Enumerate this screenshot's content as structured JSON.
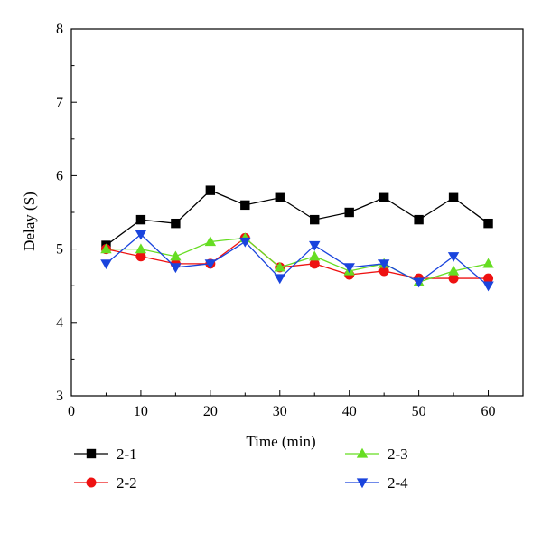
{
  "chart_data": {
    "type": "line",
    "title": "",
    "xlabel": "Time (min)",
    "ylabel": "Delay (S)",
    "xlim": [
      0,
      65
    ],
    "ylim": [
      3,
      8
    ],
    "xticks": [
      0,
      10,
      20,
      30,
      40,
      50,
      60
    ],
    "yticks": [
      3,
      4,
      5,
      6,
      7,
      8
    ],
    "x": [
      5,
      10,
      15,
      20,
      25,
      30,
      35,
      40,
      45,
      50,
      55,
      60
    ],
    "grid": false,
    "legend_position": "bottom",
    "series": [
      {
        "name": "2-1",
        "color": "#000000",
        "marker": "square",
        "values": [
          5.05,
          5.4,
          5.35,
          5.8,
          5.6,
          5.7,
          5.4,
          5.5,
          5.7,
          5.4,
          5.7,
          5.35
        ]
      },
      {
        "name": "2-2",
        "color": "#ee1111",
        "marker": "circle",
        "values": [
          5.0,
          4.9,
          4.8,
          4.8,
          5.15,
          4.75,
          4.8,
          4.65,
          4.7,
          4.6,
          4.6,
          4.6
        ]
      },
      {
        "name": "2-3",
        "color": "#66dd22",
        "marker": "triangle-up",
        "values": [
          5.0,
          5.0,
          4.9,
          5.1,
          5.15,
          4.75,
          4.9,
          4.7,
          4.8,
          4.55,
          4.7,
          4.8
        ]
      },
      {
        "name": "2-4",
        "color": "#1a44dd",
        "marker": "triangle-down",
        "values": [
          4.8,
          5.2,
          4.75,
          4.8,
          5.1,
          4.6,
          5.05,
          4.75,
          4.8,
          4.55,
          4.9,
          4.5
        ]
      }
    ]
  }
}
